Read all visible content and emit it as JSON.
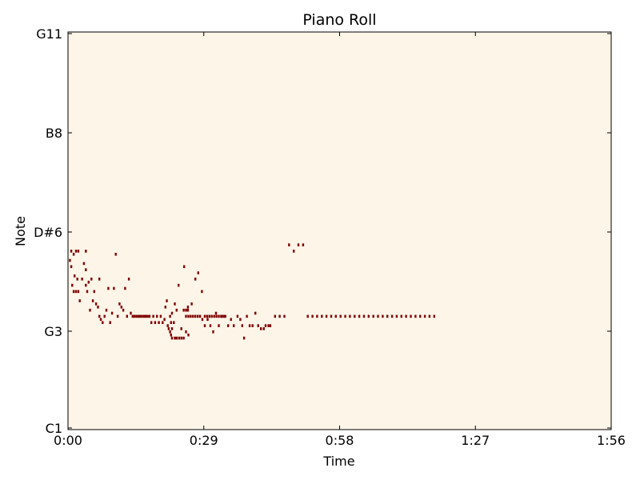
{
  "chart_data": {
    "type": "heatmap",
    "title": "Piano Roll",
    "xlabel": "Time",
    "ylabel": "Note",
    "x_ticks": [
      "0:00",
      "0:29",
      "0:58",
      "1:27",
      "1:56"
    ],
    "y_ticks": [
      "C1",
      "G3",
      "D#6",
      "B8",
      "G11"
    ],
    "xlim_seconds": [
      0,
      116
    ],
    "ylim_midi": [
      24,
      152
    ],
    "grid": false,
    "colors": {
      "background": "#fdf5e8",
      "note": "#800000"
    },
    "notes_time_seconds_midi": [
      [
        0.2,
        78
      ],
      [
        0.5,
        81
      ],
      [
        1.0,
        80
      ],
      [
        1.5,
        81
      ],
      [
        2.0,
        81
      ],
      [
        0.5,
        76
      ],
      [
        1.0,
        68
      ],
      [
        1.5,
        68
      ],
      [
        2.0,
        68
      ],
      [
        0.7,
        70
      ],
      [
        1.2,
        73
      ],
      [
        1.8,
        72
      ],
      [
        2.3,
        65
      ],
      [
        2.8,
        72
      ],
      [
        3.2,
        77
      ],
      [
        3.6,
        70
      ],
      [
        3.6,
        75
      ],
      [
        3.6,
        81
      ],
      [
        3.9,
        68
      ],
      [
        4.2,
        71
      ],
      [
        4.5,
        62
      ],
      [
        4.8,
        72
      ],
      [
        5.1,
        65
      ],
      [
        5.4,
        68
      ],
      [
        5.8,
        64
      ],
      [
        6.2,
        63
      ],
      [
        6.5,
        60
      ],
      [
        6.5,
        72
      ],
      [
        6.8,
        59
      ],
      [
        7.2,
        58
      ],
      [
        7.6,
        60
      ],
      [
        8.0,
        62
      ],
      [
        8.4,
        69
      ],
      [
        8.8,
        58
      ],
      [
        9.2,
        61
      ],
      [
        9.6,
        69
      ],
      [
        10.0,
        80
      ],
      [
        10.4,
        60
      ],
      [
        10.8,
        64
      ],
      [
        11.2,
        63
      ],
      [
        11.6,
        62
      ],
      [
        12.0,
        69
      ],
      [
        12.4,
        60
      ],
      [
        12.8,
        72
      ],
      [
        13.2,
        61
      ],
      [
        13.6,
        60
      ],
      [
        14.0,
        60
      ],
      [
        14.4,
        60
      ],
      [
        14.8,
        60
      ],
      [
        15.2,
        60
      ],
      [
        15.6,
        60
      ],
      [
        16.0,
        60
      ],
      [
        16.4,
        60
      ],
      [
        16.8,
        60
      ],
      [
        17.2,
        60
      ],
      [
        17.6,
        58
      ],
      [
        18.0,
        60
      ],
      [
        18.4,
        58
      ],
      [
        18.8,
        60
      ],
      [
        19.2,
        58
      ],
      [
        19.6,
        60
      ],
      [
        20.0,
        58
      ],
      [
        20.4,
        59
      ],
      [
        20.6,
        63
      ],
      [
        20.9,
        65
      ],
      [
        21.1,
        57
      ],
      [
        21.3,
        56
      ],
      [
        21.6,
        60
      ],
      [
        22.0,
        61
      ],
      [
        22.6,
        64
      ],
      [
        23.0,
        62
      ],
      [
        23.4,
        70
      ],
      [
        24.0,
        56
      ],
      [
        24.6,
        76
      ],
      [
        25.0,
        60
      ],
      [
        25.4,
        62
      ],
      [
        22.0,
        56
      ],
      [
        22.4,
        58
      ],
      [
        21.8,
        58
      ],
      [
        21.6,
        55
      ],
      [
        21.8,
        54
      ],
      [
        22.0,
        53
      ],
      [
        22.6,
        53
      ],
      [
        23.0,
        53
      ],
      [
        23.5,
        53
      ],
      [
        24.0,
        53
      ],
      [
        24.5,
        53
      ],
      [
        25.0,
        55
      ],
      [
        25.5,
        54
      ],
      [
        25.5,
        60
      ],
      [
        26.0,
        60
      ],
      [
        26.5,
        60
      ],
      [
        27.0,
        60
      ],
      [
        27.5,
        60
      ],
      [
        28.0,
        60
      ],
      [
        28.5,
        59
      ],
      [
        29.0,
        60
      ],
      [
        29.5,
        60
      ],
      [
        30.0,
        60
      ],
      [
        30.5,
        60
      ],
      [
        31.0,
        60
      ],
      [
        31.5,
        60
      ],
      [
        32.0,
        60
      ],
      [
        32.5,
        60
      ],
      [
        33.0,
        60
      ],
      [
        24.5,
        62
      ],
      [
        25.0,
        62
      ],
      [
        25.4,
        63
      ],
      [
        26.2,
        64
      ],
      [
        27.0,
        72
      ],
      [
        27.6,
        74
      ],
      [
        28.4,
        68
      ],
      [
        29.0,
        57
      ],
      [
        29.6,
        59
      ],
      [
        30.2,
        57
      ],
      [
        30.8,
        55
      ],
      [
        31.4,
        61
      ],
      [
        32.0,
        57
      ],
      [
        32.6,
        60
      ],
      [
        33.4,
        60
      ],
      [
        34.0,
        57
      ],
      [
        34.6,
        59
      ],
      [
        35.2,
        57
      ],
      [
        36.0,
        60
      ],
      [
        36.6,
        59
      ],
      [
        37.0,
        57
      ],
      [
        37.4,
        53
      ],
      [
        38.0,
        60
      ],
      [
        38.6,
        57
      ],
      [
        39.2,
        57
      ],
      [
        39.8,
        61
      ],
      [
        40.4,
        57
      ],
      [
        41.0,
        56
      ],
      [
        41.6,
        56
      ],
      [
        42.0,
        57
      ],
      [
        42.6,
        57
      ],
      [
        43.0,
        57
      ],
      [
        44.0,
        60
      ],
      [
        45.0,
        60
      ],
      [
        46.0,
        60
      ],
      [
        47.0,
        83
      ],
      [
        48.0,
        81
      ],
      [
        49.0,
        83
      ],
      [
        50.0,
        83
      ],
      [
        51.0,
        60
      ],
      [
        52.0,
        60
      ],
      [
        53.0,
        60
      ],
      [
        54.0,
        60
      ],
      [
        55.0,
        60
      ],
      [
        56.0,
        60
      ],
      [
        57.0,
        60
      ],
      [
        58.0,
        60
      ],
      [
        59.0,
        60
      ],
      [
        60.0,
        60
      ],
      [
        61.0,
        60
      ],
      [
        62.0,
        60
      ],
      [
        63.0,
        60
      ],
      [
        64.0,
        60
      ],
      [
        65.0,
        60
      ],
      [
        66.0,
        60
      ],
      [
        67.0,
        60
      ],
      [
        68.0,
        60
      ],
      [
        69.0,
        60
      ],
      [
        70.0,
        60
      ],
      [
        71.0,
        60
      ],
      [
        72.0,
        60
      ],
      [
        73.0,
        60
      ],
      [
        74.0,
        60
      ],
      [
        75.0,
        60
      ],
      [
        76.0,
        60
      ],
      [
        77.0,
        60
      ],
      [
        78.0,
        60
      ]
    ]
  }
}
